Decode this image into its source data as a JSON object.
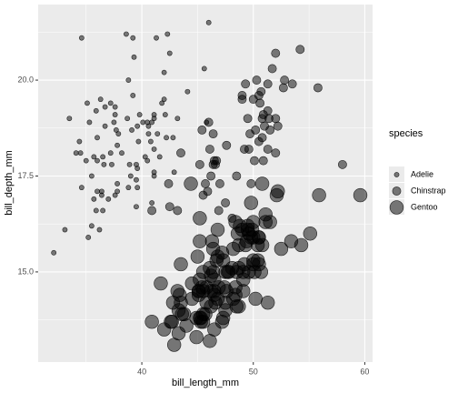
{
  "chart_data": {
    "type": "scatter",
    "x_label": "bill_length_mm",
    "y_label": "bill_depth_mm",
    "xlim": [
      30.7,
      60.7
    ],
    "ylim": [
      12.65,
      21.97
    ],
    "xticks": [
      40,
      50,
      60
    ],
    "yticks": [
      {
        "value": 15,
        "label": "15.0"
      },
      17.5,
      {
        "value": 20,
        "label": "20.0"
      }
    ],
    "x_minor_grid": [
      35,
      45,
      55
    ],
    "y_minor_grid": [
      13.75,
      16.25,
      18.75,
      21.25
    ],
    "grid": true,
    "alpha": 0.5,
    "legend_title": "species",
    "legend_position": "right",
    "series": [
      {
        "name": "Adelie",
        "color": "#000000",
        "x": [
          39.1,
          39.5,
          40.3,
          36.7,
          39.3,
          38.9,
          39.2,
          34.1,
          42.0,
          37.8,
          37.8,
          41.1,
          38.6,
          34.6,
          36.6,
          38.7,
          42.5,
          34.4,
          46.0,
          37.8,
          37.7,
          35.9,
          38.2,
          38.8,
          35.3,
          40.6,
          40.5,
          37.9,
          40.5,
          39.5,
          37.2,
          39.5,
          40.9,
          36.4,
          39.2,
          38.8,
          42.2,
          37.6,
          39.8,
          36.5,
          40.8,
          36.0,
          44.1,
          37.0,
          39.6,
          41.1,
          37.5,
          36.0,
          42.3,
          39.6,
          40.1,
          35.0,
          42.0,
          34.5,
          41.4,
          39.0,
          40.6,
          36.5,
          37.6,
          35.7,
          41.3,
          37.6,
          41.1,
          36.4,
          41.6,
          35.5,
          41.1,
          35.9,
          41.8,
          33.5,
          39.7,
          39.6,
          45.8,
          35.5,
          42.8,
          40.9,
          37.2,
          36.2,
          42.1,
          34.6,
          42.9,
          36.7,
          35.1,
          37.3,
          41.1,
          36.0,
          32.1,
          33.1,
          36.3,
          35.7,
          45.6,
          43.2,
          35.2
        ],
        "values": [
          18.7,
          17.4,
          18.0,
          19.3,
          20.6,
          17.8,
          19.6,
          18.1,
          20.2,
          17.1,
          17.3,
          17.6,
          21.2,
          21.1,
          17.8,
          19.0,
          20.7,
          18.4,
          21.5,
          18.3,
          18.7,
          19.2,
          18.1,
          17.2,
          18.9,
          18.6,
          17.9,
          18.6,
          18.9,
          16.7,
          18.1,
          17.8,
          18.9,
          17.0,
          21.1,
          20.0,
          18.5,
          19.3,
          19.1,
          18.0,
          18.4,
          18.5,
          19.7,
          16.9,
          18.8,
          19.0,
          18.9,
          17.9,
          21.2,
          17.7,
          18.9,
          17.9,
          19.5,
          18.1,
          18.6,
          17.5,
          18.8,
          16.6,
          19.1,
          16.9,
          21.1,
          17.0,
          18.2,
          17.1,
          18.0,
          16.2,
          19.1,
          16.6,
          19.4,
          19.0,
          18.4,
          17.2,
          18.9,
          17.5,
          18.5,
          16.8,
          19.4,
          16.1,
          19.1,
          17.2,
          17.6,
          18.8,
          19.4,
          17.8,
          17.5,
          17.1,
          15.5,
          16.1,
          19.5,
          18.0,
          20.3,
          19.0,
          15.9
        ]
      },
      {
        "name": "Chinstrap",
        "color": "#000000",
        "x": [
          46.5,
          50.0,
          51.3,
          45.4,
          52.7,
          45.2,
          46.1,
          51.3,
          46.0,
          51.3,
          46.6,
          51.7,
          47.0,
          52.0,
          45.9,
          50.5,
          50.3,
          58.0,
          46.4,
          49.2,
          42.4,
          48.5,
          43.2,
          50.6,
          46.7,
          52.0,
          50.5,
          49.5,
          46.4,
          52.8,
          40.9,
          54.2,
          42.5,
          51.0,
          49.7,
          47.5,
          47.6,
          52.0,
          46.9,
          53.5,
          49.0,
          46.2,
          50.9,
          45.5,
          50.9,
          50.8,
          50.1,
          49.0,
          51.5,
          49.8,
          48.1,
          51.4,
          45.7,
          50.7,
          52.2,
          49.3,
          55.8,
          43.5,
          49.6,
          50.8,
          50.2
        ],
        "values": [
          17.9,
          19.5,
          19.2,
          18.7,
          19.8,
          17.8,
          18.2,
          18.2,
          18.9,
          19.9,
          17.8,
          20.3,
          17.3,
          18.1,
          17.1,
          19.6,
          20.0,
          17.8,
          18.6,
          18.2,
          17.3,
          17.5,
          16.6,
          19.4,
          17.9,
          19.0,
          18.4,
          19.0,
          17.8,
          20.0,
          16.6,
          20.8,
          16.7,
          18.8,
          18.6,
          16.8,
          18.3,
          20.7,
          16.6,
          19.9,
          19.5,
          17.5,
          19.1,
          17.0,
          17.9,
          18.5,
          17.9,
          19.6,
          18.7,
          17.3,
          16.4,
          19.0,
          17.3,
          19.7,
          18.8,
          19.9,
          19.8,
          18.1,
          18.2,
          19.0,
          18.7
        ]
      },
      {
        "name": "Gentoo",
        "color": "#000000",
        "x": [
          46.1,
          50.0,
          48.7,
          50.0,
          47.6,
          46.5,
          45.4,
          46.7,
          43.3,
          46.8,
          40.9,
          49.0,
          45.5,
          48.4,
          45.8,
          49.3,
          42.0,
          49.2,
          46.2,
          48.7,
          50.2,
          45.1,
          46.5,
          46.3,
          42.9,
          46.1,
          44.5,
          47.8,
          48.2,
          50.0,
          47.3,
          42.8,
          45.1,
          59.6,
          49.1,
          48.4,
          42.6,
          44.4,
          44.0,
          48.7,
          42.7,
          49.6,
          45.3,
          49.6,
          50.5,
          43.6,
          45.5,
          50.5,
          44.9,
          45.2,
          46.6,
          48.5,
          45.1,
          50.1,
          46.5,
          45.0,
          43.8,
          45.5,
          43.2,
          50.4,
          45.3,
          46.2,
          45.7,
          54.3,
          45.8,
          49.8,
          49.5,
          43.5,
          50.7,
          47.7,
          46.4,
          48.2,
          46.5,
          46.4,
          48.6,
          47.5,
          51.1,
          45.2,
          45.2,
          49.1,
          52.5,
          47.4,
          50.0,
          44.9,
          50.8,
          43.4,
          51.3,
          47.5,
          52.1,
          47.5,
          52.2,
          45.5,
          49.5,
          44.5,
          50.8,
          49.4,
          46.9,
          48.4,
          51.1,
          48.5,
          55.9,
          47.2,
          49.1,
          47.3,
          46.8,
          41.7,
          53.4,
          43.3,
          48.1,
          50.5,
          49.8,
          43.5,
          51.5,
          46.2,
          55.1,
          48.8,
          47.2,
          46.8,
          50.4,
          45.2,
          49.9
        ],
        "values": [
          13.2,
          16.3,
          14.1,
          15.2,
          14.5,
          13.5,
          14.6,
          15.3,
          13.4,
          15.4,
          13.7,
          16.1,
          13.7,
          14.6,
          14.6,
          15.7,
          13.5,
          15.2,
          14.5,
          15.1,
          14.3,
          14.5,
          14.5,
          15.8,
          13.1,
          15.1,
          14.3,
          15.0,
          14.3,
          15.3,
          15.3,
          14.2,
          14.5,
          17.0,
          14.8,
          16.3,
          13.7,
          17.3,
          13.6,
          15.7,
          13.7,
          16.0,
          13.7,
          15.0,
          15.9,
          13.9,
          13.9,
          15.9,
          13.3,
          15.8,
          14.2,
          14.1,
          14.4,
          15.0,
          14.4,
          15.4,
          13.9,
          15.0,
          14.5,
          15.3,
          13.8,
          14.9,
          13.9,
          15.7,
          14.2,
          16.8,
          16.2,
          14.2,
          15.0,
          15.0,
          15.6,
          15.6,
          14.8,
          15.0,
          16.0,
          14.2,
          16.3,
          13.8,
          16.4,
          14.5,
          15.6,
          14.6,
          15.9,
          13.8,
          17.3,
          14.4,
          14.2,
          14.0,
          17.0,
          15.0,
          17.1,
          14.5,
          16.1,
          14.7,
          15.7,
          15.8,
          14.6,
          14.4,
          16.5,
          15.0,
          17.0,
          15.5,
          15.0,
          13.8,
          16.1,
          14.7,
          15.8,
          14.0,
          15.1,
          15.2,
          15.9,
          15.2,
          16.3,
          14.1,
          16.0,
          16.2,
          13.7,
          14.3,
          15.7,
          14.8,
          16.1
        ]
      }
    ]
  }
}
